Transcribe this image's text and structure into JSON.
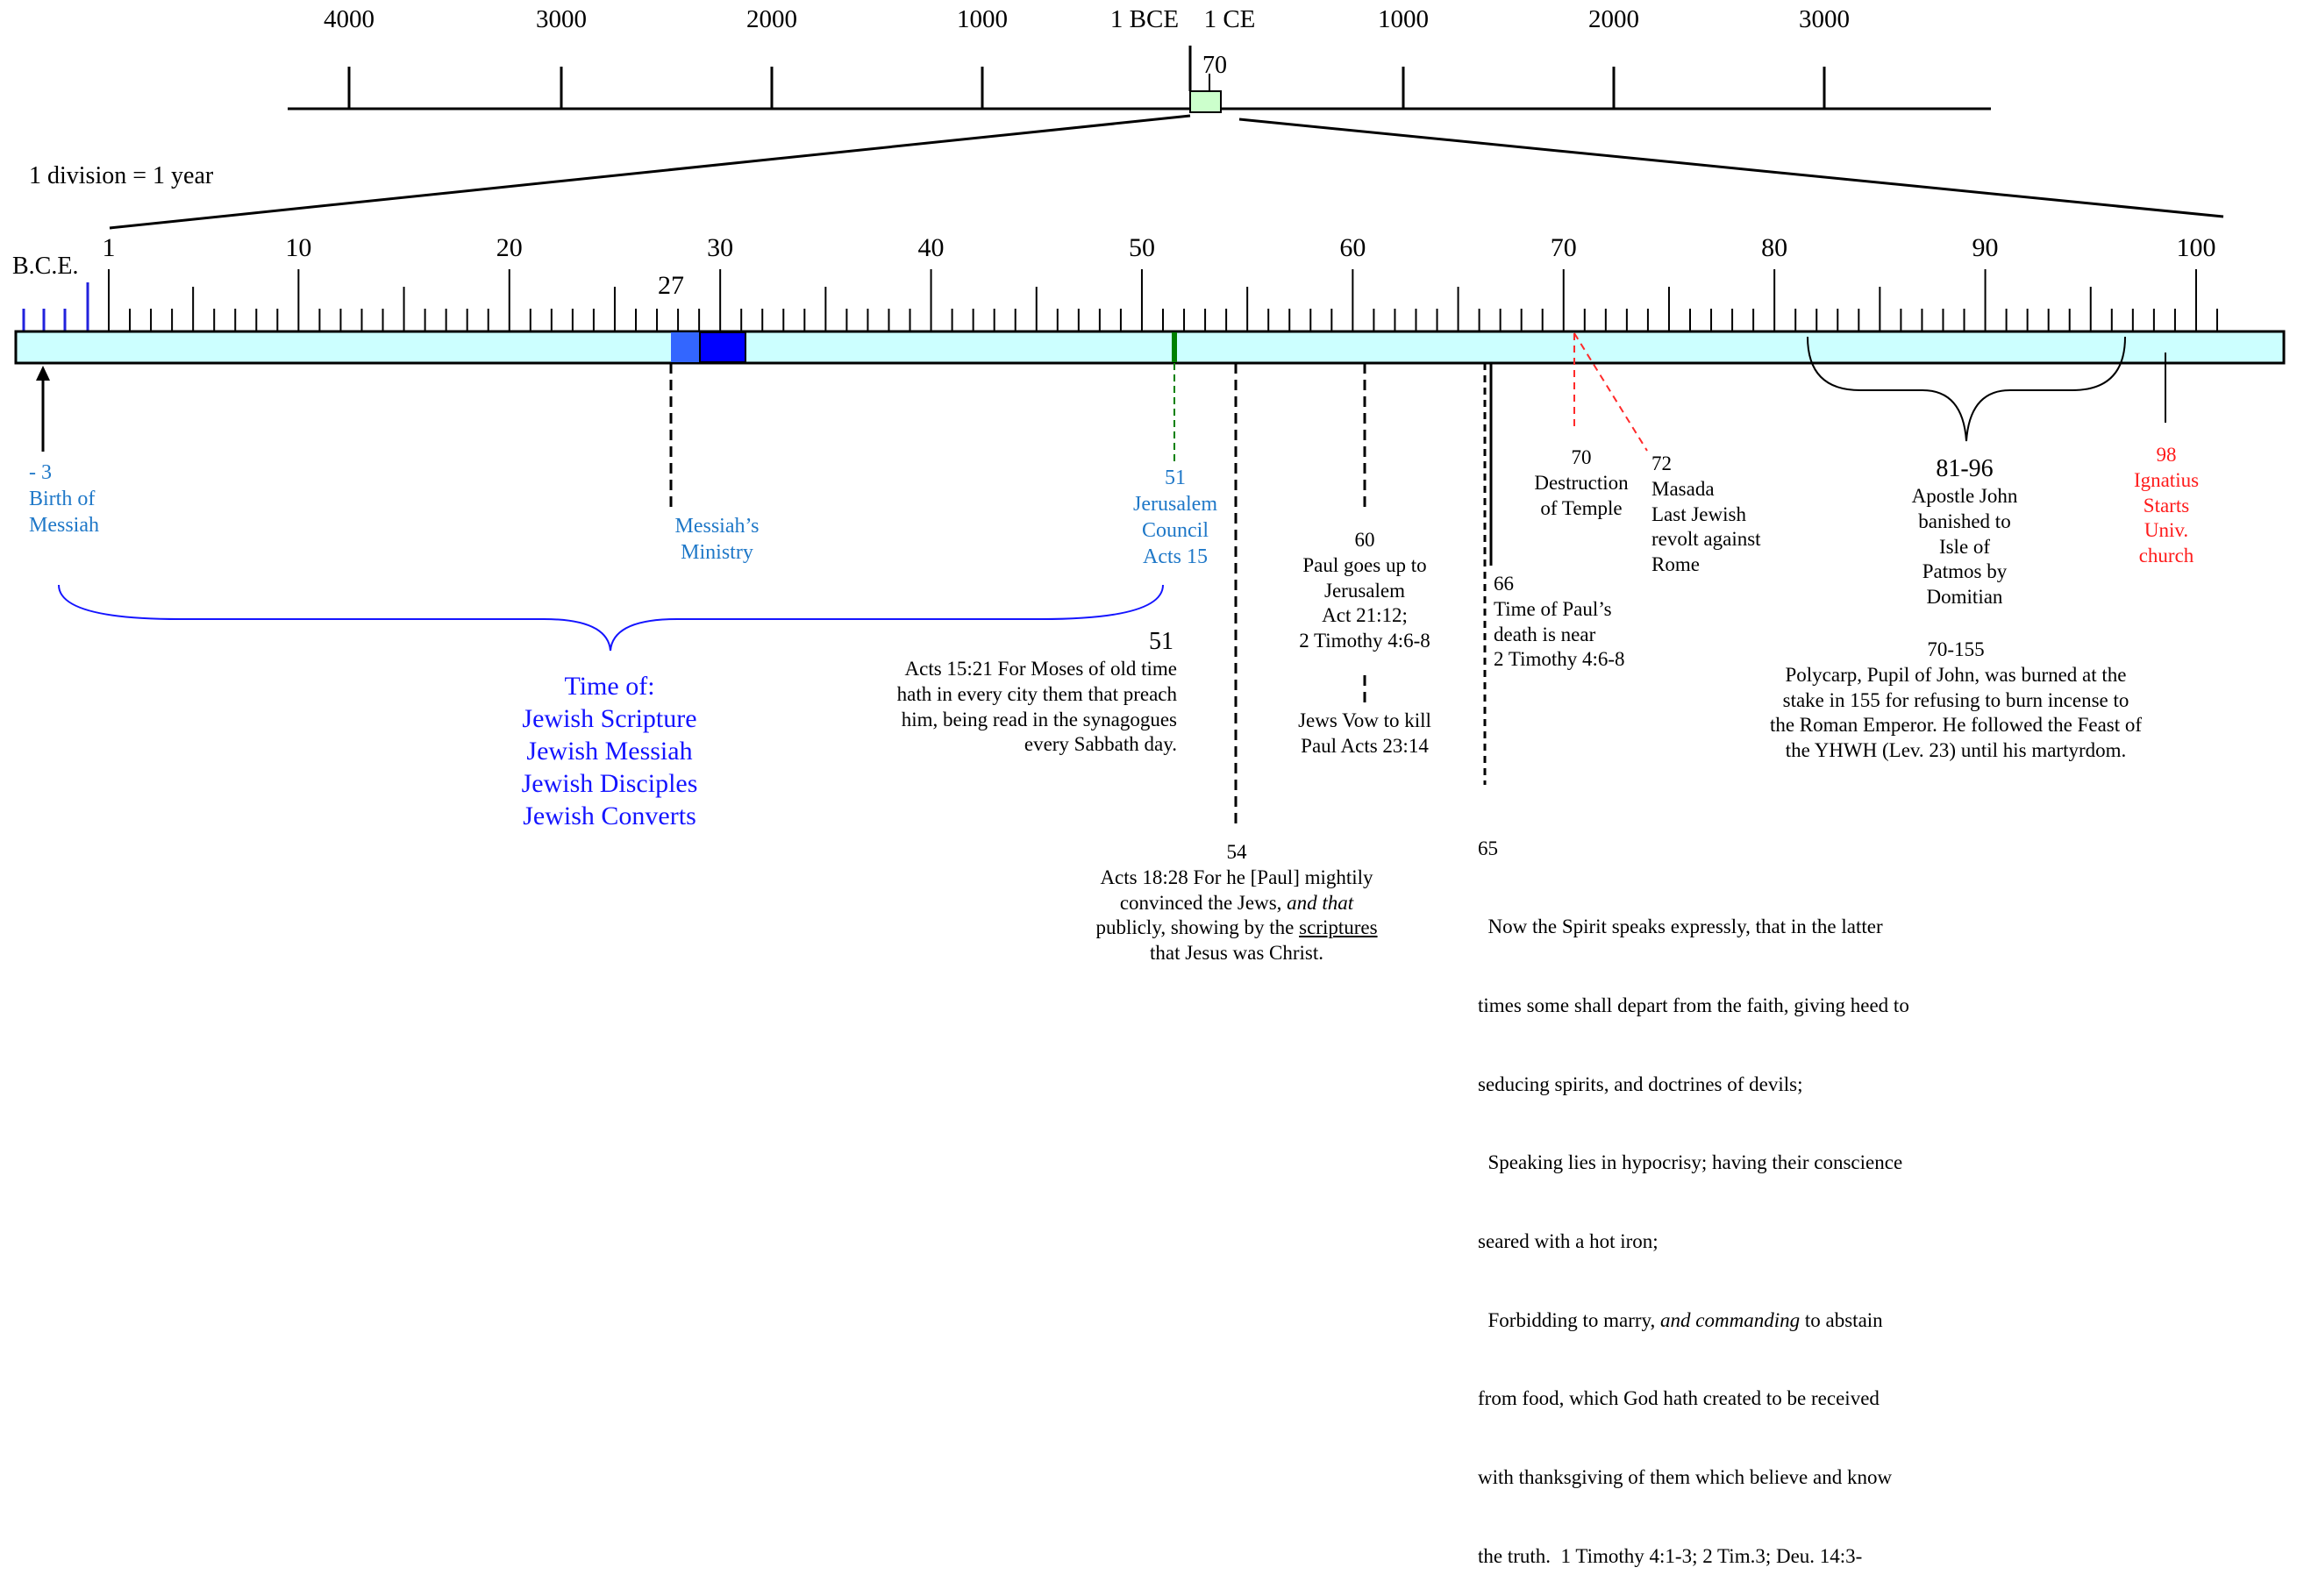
{
  "scale_note": "1 division = 1 year",
  "bce_label": "B.C.E.",
  "top_axis": {
    "ticks": [
      "4000",
      "3000",
      "2000",
      "1000",
      "1 BCE",
      "1 CE",
      "1000",
      "2000",
      "3000"
    ],
    "highlight_label": "70"
  },
  "main_axis": {
    "ticks": [
      "1",
      "10",
      "20",
      "30",
      "40",
      "50",
      "60",
      "70",
      "80",
      "90",
      "100"
    ],
    "extra_label_27": "27"
  },
  "annotations": {
    "birth": {
      "year": "- 3",
      "line1": "Birth of",
      "line2": "Messiah"
    },
    "ministry": {
      "line1": "Messiah’s",
      "line2": "Ministry"
    },
    "council": {
      "year": "51",
      "line1": "Jerusalem",
      "line2": "Council",
      "line3": "Acts 15"
    },
    "time_of": {
      "title": "Time of:",
      "items": [
        "Jewish Scripture",
        "Jewish Messiah",
        "Jewish Disciples",
        "Jewish Converts"
      ]
    },
    "acts1521": {
      "year": "51",
      "lines": [
        "Acts 15:21   For Moses of old time",
        "hath in every city them that preach",
        "him, being read in the synagogues",
        "every Sabbath day."
      ]
    },
    "acts1828": {
      "year": "54",
      "line1": "Acts  18:28   For he [Paul] mightily",
      "line2a": "convinced the Jews, ",
      "line2b": "and that",
      "line3a": "publicly, showing by the ",
      "line3b": "scriptures",
      "line4": "that Jesus was Christ."
    },
    "paul_jerusalem": {
      "year": "60",
      "lines": [
        "Paul goes up to",
        "Jerusalem",
        "Act 21:12;",
        "2 Timothy 4:6-8"
      ]
    },
    "vow": {
      "lines": [
        "Jews Vow to kill",
        "Paul  Acts 23:14"
      ]
    },
    "temple": {
      "year": "70",
      "line1": "Destruction",
      "line2": "of Temple"
    },
    "masada": {
      "year": "72",
      "lines": [
        "Masada",
        "Last Jewish",
        "revolt against",
        "Rome"
      ]
    },
    "paul_death": {
      "year": "66",
      "lines": [
        "Time of Paul’s",
        "death is near",
        "2 Timothy 4:6-8"
      ]
    },
    "john": {
      "years": "81-96",
      "lines": [
        "Apostle John",
        "banished to",
        "Isle of",
        "Patmos by",
        "Domitian"
      ]
    },
    "ignatius": {
      "year": "98",
      "lines": [
        "Ignatius",
        "Starts",
        "Univ.",
        "church"
      ]
    },
    "polycarp": {
      "years": "70-155",
      "lines": [
        "Polycarp, Pupil of John, was burned at the",
        "stake in 155 for refusing to burn incense to",
        "the Roman Emperor. He followed the Feast of",
        "the YHWH (Lev. 23) until his martyrdom."
      ]
    },
    "tim41": {
      "year": "65",
      "l1": "  Now the Spirit speaks expressly, that in the latter",
      "l2": "times some shall depart from the faith, giving heed to",
      "l3": "seducing spirits, and doctrines of devils;",
      "l4": "  Speaking lies in hypocrisy; having their conscience",
      "l5": "seared with a hot iron;",
      "l6a": "  Forbidding to marry, ",
      "l6b": "and commanding",
      "l6c": " to abstain",
      "l7": "from food, which God hath created to be received",
      "l8": "with thanksgiving of them which believe and know",
      "l9": "the truth.  1 Timothy 4:1-3; 2 Tim.3; Deu. 14:3-"
    }
  },
  "colors": {
    "bar_fill": "#ccffff",
    "ministry_light": "#3366ff",
    "ministry_dark": "#0000ff",
    "council_mark": "#008000",
    "blue_text": "#1f78c8",
    "dark_blue_text": "#1414ff",
    "red_text": "#ff1a1a",
    "zoom_box": "#ccffcc"
  }
}
